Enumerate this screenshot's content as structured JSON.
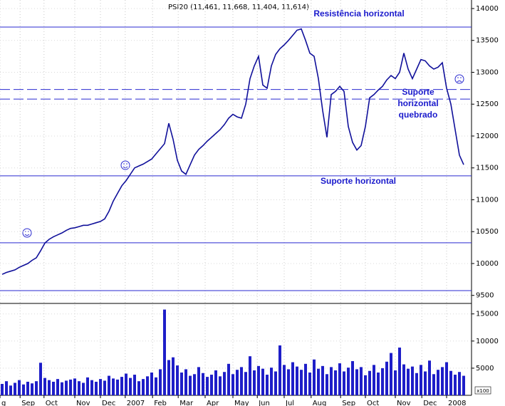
{
  "chart_data": {
    "type": "stock",
    "title": "PSI20 (11,461, 11,668, 11,404, 11,614)",
    "grid": true,
    "xlim": [
      -0.5,
      109.5
    ],
    "xticks": [
      {
        "value": -0.5,
        "label": "g"
      },
      {
        "value": 4.2,
        "label": "Sep"
      },
      {
        "value": 9.8,
        "label": "Oct"
      },
      {
        "value": 17,
        "label": "Nov"
      },
      {
        "value": 23,
        "label": "Dec"
      },
      {
        "value": 28.8,
        "label": "2007"
      },
      {
        "value": 35.2,
        "label": "Feb"
      },
      {
        "value": 41.2,
        "label": "Mar"
      },
      {
        "value": 47.5,
        "label": "Apr"
      },
      {
        "value": 54,
        "label": "May"
      },
      {
        "value": 59.7,
        "label": "Jun"
      },
      {
        "value": 66,
        "label": "Jul"
      },
      {
        "value": 72.3,
        "label": "Aug"
      },
      {
        "value": 79.2,
        "label": "Sep"
      },
      {
        "value": 85,
        "label": "Oct"
      },
      {
        "value": 92,
        "label": "Nov"
      },
      {
        "value": 98.2,
        "label": "Dec"
      },
      {
        "value": 104,
        "label": "2008"
      }
    ],
    "ylim": [
      9385,
      14134
    ],
    "yticks": [
      9500,
      10000,
      10500,
      11000,
      11500,
      12000,
      12500,
      13000,
      13500,
      14000
    ],
    "price": {
      "color": "#10109a",
      "values": [
        9830,
        9860,
        9880,
        9900,
        9940,
        9970,
        10000,
        10050,
        10090,
        10200,
        10320,
        10380,
        10420,
        10450,
        10480,
        10520,
        10550,
        10560,
        10580,
        10600,
        10600,
        10620,
        10640,
        10660,
        10700,
        10820,
        10980,
        11100,
        11220,
        11300,
        11400,
        11500,
        11530,
        11560,
        11600,
        11640,
        11720,
        11800,
        11880,
        12200,
        11950,
        11620,
        11450,
        11400,
        11550,
        11700,
        11790,
        11850,
        11920,
        11980,
        12040,
        12100,
        12180,
        12280,
        12340,
        12300,
        12280,
        12500,
        12900,
        13100,
        13250,
        12800,
        12750,
        13100,
        13280,
        13370,
        13430,
        13500,
        13580,
        13660,
        13680,
        13500,
        13300,
        13250,
        12900,
        12400,
        11980,
        12650,
        12700,
        12780,
        12700,
        12150,
        11900,
        11780,
        11850,
        12150,
        12600,
        12650,
        12720,
        12780,
        12880,
        12950,
        12900,
        13000,
        13300,
        13050,
        12900,
        13050,
        13200,
        13180,
        13100,
        13050,
        13080,
        13150,
        12750,
        12500,
        12100,
        11700,
        11550
      ]
    },
    "volume": {
      "color": "#1e1ec8",
      "ylim": [
        0,
        16800
      ],
      "yticks": [
        5000,
        10000,
        15000
      ],
      "unit_label": "x100",
      "values": [
        2100,
        2600,
        1800,
        2300,
        2800,
        2000,
        2500,
        2200,
        2600,
        6000,
        3200,
        2800,
        2500,
        3000,
        2400,
        2700,
        2900,
        3100,
        2600,
        2300,
        3300,
        2800,
        2500,
        3000,
        2700,
        3600,
        3100,
        2900,
        3400,
        4000,
        3200,
        3800,
        2600,
        3000,
        3500,
        4200,
        3300,
        4800,
        15800,
        6500,
        7000,
        5500,
        4200,
        4800,
        3600,
        3900,
        5200,
        4100,
        3400,
        3800,
        4600,
        3500,
        4300,
        5800,
        3900,
        4700,
        5200,
        4300,
        7200,
        4600,
        5400,
        4900,
        3800,
        5100,
        4400,
        9200,
        5600,
        4800,
        6100,
        5300,
        4700,
        5800,
        4200,
        6600,
        4900,
        5400,
        3900,
        5200,
        4600,
        5900,
        4400,
        5100,
        6300,
        4800,
        5200,
        3700,
        4500,
        5600,
        4200,
        5000,
        6200,
        7800,
        4600,
        8800,
        5700,
        4900,
        5300,
        4100,
        5600,
        4400,
        6400,
        3900,
        4700,
        5200,
        6100,
        4500,
        3800,
        4300,
        3600
      ]
    },
    "hlines": [
      {
        "value": 13710,
        "dashed": false
      },
      {
        "value": 12730,
        "dashed": true
      },
      {
        "value": 12580,
        "dashed": true
      },
      {
        "value": 11375,
        "dashed": false
      },
      {
        "value": 10325,
        "dashed": false
      },
      {
        "value": 9575,
        "dashed": false
      }
    ],
    "line_color": "#2a2ad0",
    "annotations": [
      {
        "lines": [
          "Resistência horizontal"
        ]
      },
      {
        "lines": [
          "Suporte",
          "horizontal",
          "quebrado"
        ]
      },
      {
        "lines": [
          "Suporte horizontal"
        ]
      }
    ]
  }
}
